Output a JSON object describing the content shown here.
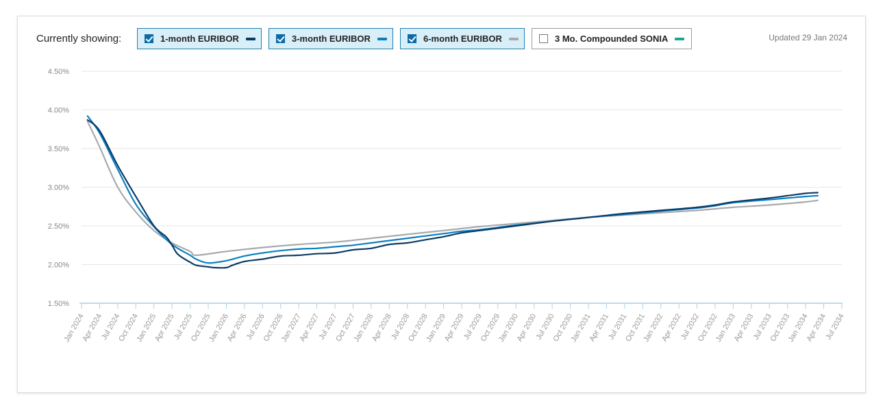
{
  "header": {
    "showing_label": "Currently showing:",
    "updated": "Updated 29 Jan 2024"
  },
  "legend": [
    {
      "label": "1-month EURIBOR",
      "color": "#0b3a66",
      "checked": true
    },
    {
      "label": "3-month EURIBOR",
      "color": "#0a7fc0",
      "checked": true
    },
    {
      "label": "6-month EURIBOR",
      "color": "#a7a9ad",
      "checked": true
    },
    {
      "label": "3 Mo. Compounded SONIA",
      "color": "#1aa88a",
      "checked": false
    }
  ],
  "chart_data": {
    "type": "line",
    "title": "",
    "xlabel": "",
    "ylabel": "",
    "ylim": [
      1.5,
      4.5
    ],
    "yticks": [
      "1.50%",
      "2.00%",
      "2.50%",
      "3.00%",
      "3.50%",
      "4.00%",
      "4.50%"
    ],
    "yvalues": [
      1.5,
      2.0,
      2.5,
      3.0,
      3.5,
      4.0,
      4.5
    ],
    "grid": true,
    "xticks": [
      "Jan 2024",
      "Apr 2024",
      "Jul 2024",
      "Oct 2024",
      "Jan 2025",
      "Apr 2025",
      "Jul 2025",
      "Oct 2025",
      "Jan 2026",
      "Apr 2026",
      "Jul 2026",
      "Oct 2026",
      "Jan 2027",
      "Apr 2027",
      "Jul 2027",
      "Oct 2027",
      "Jan 2028",
      "Apr 2028",
      "Jul 2028",
      "Oct 2028",
      "Jan 2029",
      "Apr 2029",
      "Jul 2029",
      "Oct 2029",
      "Jan 2030",
      "Apr 2030",
      "Jul 2030",
      "Oct 2030",
      "Jan 2031",
      "Apr 2031",
      "Jul 2031",
      "Oct 2031",
      "Jan 2032",
      "Apr 2032",
      "Jul 2032",
      "Oct 2032",
      "Jan 2033",
      "Apr 2033",
      "Jul 2033",
      "Oct 2033",
      "Jan 2034",
      "Apr 2034",
      "Jul 2034"
    ],
    "series": [
      {
        "name": "1-month EURIBOR",
        "color": "#0b3a66",
        "x": [
          "Feb 2024",
          "Apr 2024",
          "Jul 2024",
          "Oct 2024",
          "Jan 2025",
          "Mar 2025",
          "Apr 2025",
          "May 2025",
          "Jul 2025",
          "Aug 2025",
          "Oct 2025",
          "Nov 2025",
          "Jan 2026",
          "Feb 2026",
          "Apr 2026",
          "Jul 2026",
          "Oct 2026",
          "Jan 2027",
          "Apr 2027",
          "Jul 2027",
          "Oct 2027",
          "Jan 2028",
          "Apr 2028",
          "Jul 2028",
          "Oct 2028",
          "Jan 2029",
          "Apr 2029",
          "Jul 2029",
          "Oct 2029",
          "Jan 2030",
          "Jul 2030",
          "Jan 2031",
          "Jul 2031",
          "Jan 2032",
          "Jul 2032",
          "Oct 2032",
          "Jan 2033",
          "Jul 2033",
          "Oct 2033",
          "Jan 2034",
          "Mar 2034"
        ],
        "values": [
          3.87,
          3.73,
          3.28,
          2.88,
          2.5,
          2.36,
          2.25,
          2.13,
          2.03,
          1.99,
          1.97,
          1.96,
          1.96,
          1.99,
          2.04,
          2.07,
          2.11,
          2.12,
          2.14,
          2.15,
          2.19,
          2.21,
          2.26,
          2.28,
          2.32,
          2.36,
          2.41,
          2.44,
          2.47,
          2.5,
          2.56,
          2.61,
          2.66,
          2.7,
          2.74,
          2.77,
          2.81,
          2.86,
          2.89,
          2.92,
          2.93
        ]
      },
      {
        "name": "3-month EURIBOR",
        "color": "#0a7fc0",
        "x": [
          "Feb 2024",
          "Apr 2024",
          "Jul 2024",
          "Oct 2024",
          "Jan 2025",
          "Apr 2025",
          "Jul 2025",
          "Aug 2025",
          "Oct 2025",
          "Jan 2026",
          "Apr 2026",
          "Jul 2026",
          "Oct 2026",
          "Jan 2027",
          "Apr 2027",
          "Jul 2027",
          "Oct 2027",
          "Jan 2028",
          "Apr 2028",
          "Jul 2028",
          "Oct 2028",
          "Jan 2029",
          "Apr 2029",
          "Jul 2029",
          "Oct 2029",
          "Jan 2030",
          "Jul 2030",
          "Jan 2031",
          "Jul 2031",
          "Jan 2032",
          "Jul 2032",
          "Oct 2032",
          "Jan 2033",
          "Jul 2033",
          "Oct 2033",
          "Jan 2034",
          "Mar 2034"
        ],
        "values": [
          3.92,
          3.7,
          3.23,
          2.78,
          2.49,
          2.26,
          2.12,
          2.07,
          2.02,
          2.05,
          2.11,
          2.15,
          2.18,
          2.2,
          2.21,
          2.23,
          2.25,
          2.28,
          2.31,
          2.34,
          2.37,
          2.4,
          2.43,
          2.45,
          2.48,
          2.51,
          2.56,
          2.61,
          2.65,
          2.69,
          2.73,
          2.76,
          2.8,
          2.84,
          2.86,
          2.88,
          2.89
        ]
      },
      {
        "name": "6-month EURIBOR",
        "color": "#a7a9ad",
        "x": [
          "Feb 2024",
          "Apr 2024",
          "Jul 2024",
          "Oct 2024",
          "Jan 2025",
          "Apr 2025",
          "Jul 2025",
          "Aug 2025",
          "Jan 2026",
          "Jul 2026",
          "Jan 2027",
          "Jul 2027",
          "Jan 2028",
          "Jul 2028",
          "Jan 2029",
          "Jul 2029",
          "Jan 2030",
          "Jul 2030",
          "Jan 2031",
          "Jul 2031",
          "Jan 2032",
          "Jul 2032",
          "Jan 2033",
          "Jul 2033",
          "Jan 2034",
          "Mar 2034"
        ],
        "values": [
          3.85,
          3.52,
          3.0,
          2.68,
          2.44,
          2.28,
          2.17,
          2.12,
          2.17,
          2.22,
          2.26,
          2.29,
          2.34,
          2.39,
          2.44,
          2.49,
          2.53,
          2.57,
          2.61,
          2.64,
          2.67,
          2.7,
          2.74,
          2.77,
          2.81,
          2.83
        ]
      }
    ]
  }
}
